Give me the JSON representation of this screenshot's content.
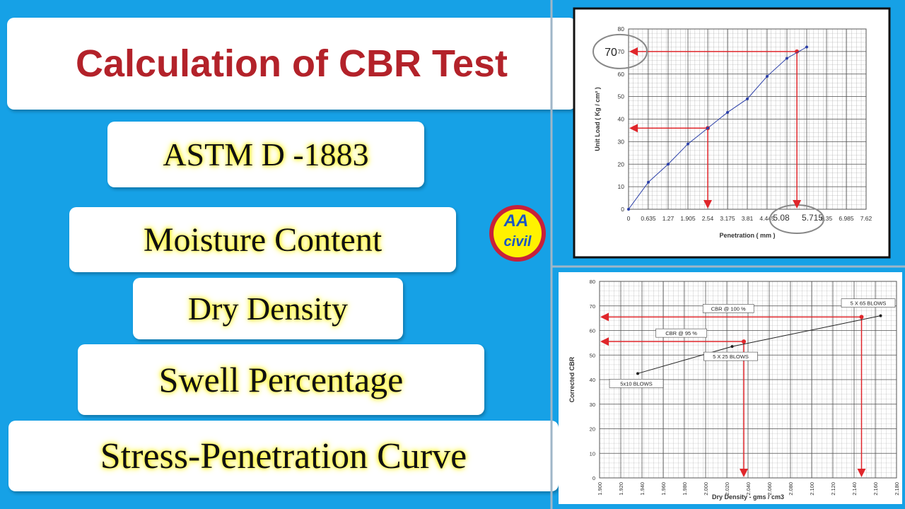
{
  "header": {
    "title": "Calculation of CBR Test"
  },
  "topics": [
    "ASTM D -1883",
    "Moisture Content",
    "Dry Density",
    "Swell Percentage",
    "Stress-Penetration Curve"
  ],
  "logo": {
    "line1": "AA",
    "line2": "civil"
  },
  "chart_data": [
    {
      "type": "line",
      "x_label": "Penetration ( mm )",
      "y_label": "Unit Load ( Kg / cm² )",
      "x": [
        0,
        0.635,
        1.27,
        1.905,
        2.54,
        3.175,
        3.81,
        4.445,
        5.08,
        5.715
      ],
      "values": [
        0,
        12,
        20,
        29,
        36,
        43,
        49,
        59,
        67,
        72
      ],
      "color": "#2b3fa8",
      "xlim": [
        0,
        7.62
      ],
      "ylim": [
        0,
        80
      ],
      "xticks": [
        0,
        0.635,
        1.27,
        1.905,
        2.54,
        3.175,
        3.81,
        4.445,
        5.08,
        5.715,
        6.35,
        6.985,
        7.62
      ],
      "yticks": [
        0,
        10,
        20,
        30,
        40,
        50,
        60,
        70,
        80
      ],
      "grid": true,
      "guides": [
        {
          "x": 2.54,
          "y": 36
        },
        {
          "x": 5.4,
          "y": 70
        }
      ],
      "annotations": [
        {
          "text": "70",
          "y": 70
        }
      ]
    },
    {
      "type": "line",
      "x_label": "Dry Density - gms / cm3",
      "y_label": "Corrected CBR",
      "x": [
        1.936,
        2.025,
        2.165
      ],
      "values": [
        42.5,
        53.5,
        66
      ],
      "point_labels": [
        "5x10 BLOWS",
        "5 X 25 BLOWS",
        "5 X 65 BLOWS"
      ],
      "color": "#222222",
      "xlim": [
        1.9,
        2.18
      ],
      "ylim": [
        0,
        80
      ],
      "xticks": [
        {
          "value": 1.9,
          "label": "1.900"
        },
        {
          "value": 1.92,
          "label": "1.920"
        },
        {
          "value": 1.94,
          "label": "1.940"
        },
        {
          "value": 1.96,
          "label": "1.960"
        },
        {
          "value": 1.98,
          "label": "1.980"
        },
        {
          "value": 2.0,
          "label": "2.000"
        },
        {
          "value": 2.02,
          "label": "2.020"
        },
        {
          "value": 2.04,
          "label": "2.040"
        },
        {
          "value": 2.06,
          "label": "2.060"
        },
        {
          "value": 2.08,
          "label": "2.080"
        },
        {
          "value": 2.1,
          "label": "2.100"
        },
        {
          "value": 2.12,
          "label": "2.120"
        },
        {
          "value": 2.14,
          "label": "2.140"
        },
        {
          "value": 2.16,
          "label": "2.160"
        },
        {
          "value": 2.18,
          "label": "2.180"
        }
      ],
      "yticks": [
        0,
        10,
        20,
        30,
        40,
        50,
        60,
        70,
        80
      ],
      "grid": true,
      "guides": [
        {
          "label": "CBR @ 100 %",
          "x": 2.147,
          "y": 65.5
        },
        {
          "label": "CBR @ 95 %",
          "x": 2.036,
          "y": 55.5
        }
      ]
    }
  ]
}
